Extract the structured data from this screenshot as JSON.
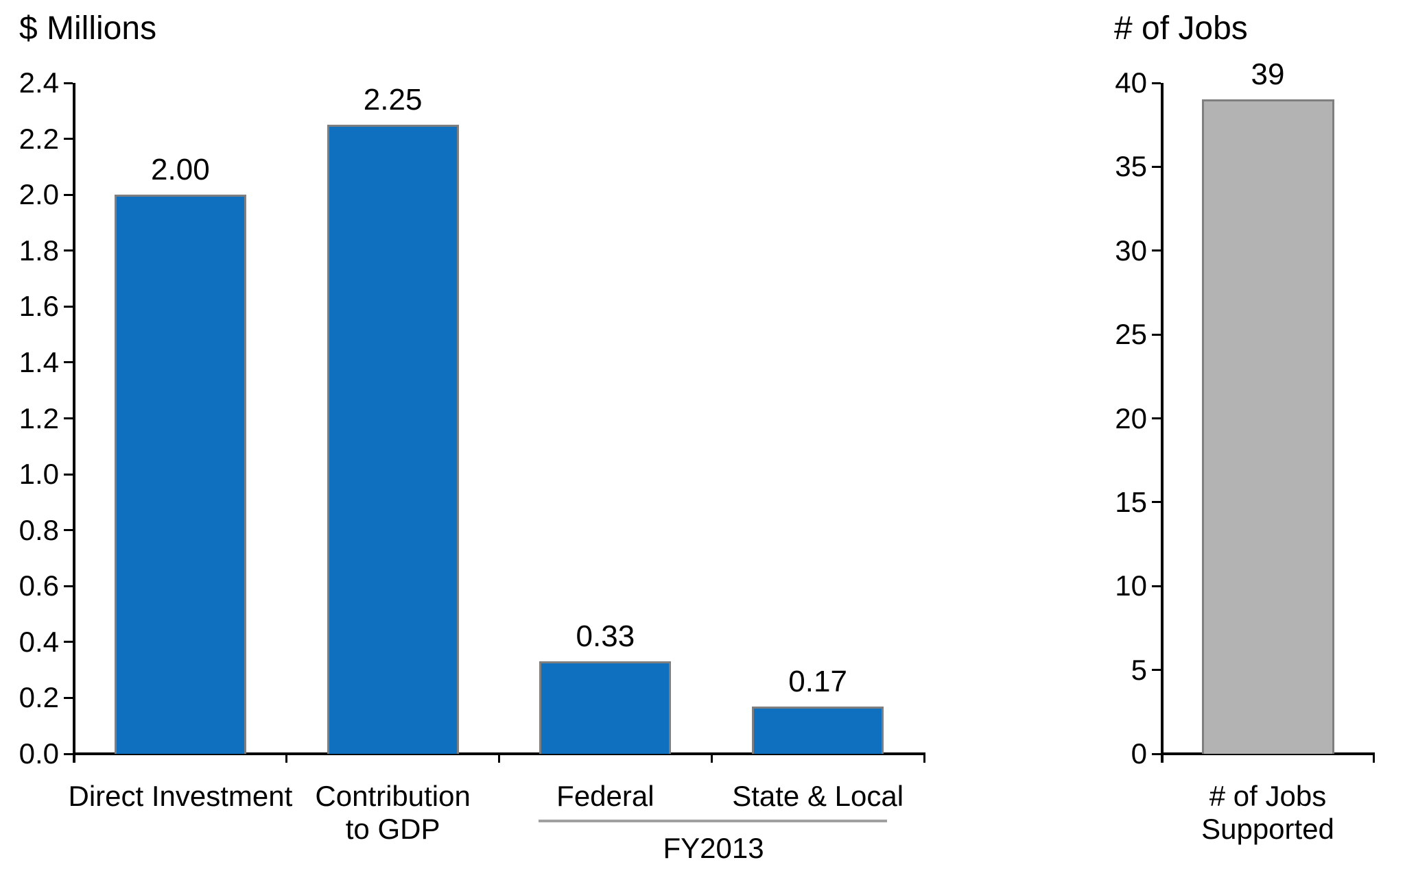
{
  "page": {
    "background": "#FFFFFF"
  },
  "chart_data": [
    {
      "type": "bar",
      "title": "$ Millions",
      "categories": [
        "Direct Investment",
        "Contribution\nto GDP",
        "Federal",
        "State & Local"
      ],
      "values": [
        2.0,
        2.25,
        0.33,
        0.17
      ],
      "data_labels": [
        "2.00",
        "2.25",
        "0.33",
        "0.17"
      ],
      "ylim": [
        0,
        2.4
      ],
      "ytick_step": 0.2,
      "ytick_labels": [
        "0.0",
        "0.2",
        "0.4",
        "0.6",
        "0.8",
        "1.0",
        "1.2",
        "1.4",
        "1.6",
        "1.8",
        "2.0",
        "2.2",
        "2.4"
      ],
      "xlabel": "",
      "ylabel": "",
      "grid": false,
      "legend": "none",
      "bar_fill": "#0E70BE",
      "bar_border": "#7F7F7F",
      "axis_color": "#000000",
      "group": {
        "label": "FY2013",
        "members": [
          "Federal",
          "State & Local"
        ],
        "line_color": "#A0A0A0"
      }
    },
    {
      "type": "bar",
      "title": "# of Jobs",
      "categories": [
        "# of Jobs\nSupported"
      ],
      "values": [
        39
      ],
      "data_labels": [
        "39"
      ],
      "ylim": [
        0,
        40
      ],
      "ytick_step": 5,
      "ytick_labels": [
        "0",
        "5",
        "10",
        "15",
        "20",
        "25",
        "30",
        "35",
        "40"
      ],
      "xlabel": "",
      "ylabel": "",
      "grid": false,
      "legend": "none",
      "bar_fill": "#B3B3B3",
      "bar_border": "#7F7F7F",
      "axis_color": "#000000"
    }
  ]
}
